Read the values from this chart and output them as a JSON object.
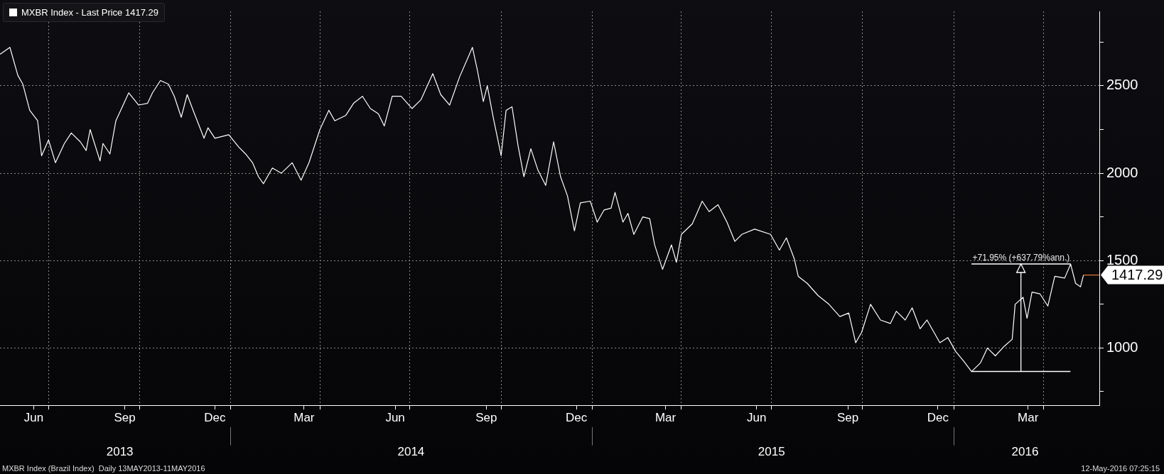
{
  "chart_data": {
    "type": "line",
    "x": [
      "2013-05-13",
      "2013-05-23",
      "2013-05-31",
      "2013-06-05",
      "2013-06-12",
      "2013-06-20",
      "2013-06-24",
      "2013-07-01",
      "2013-07-08",
      "2013-07-17",
      "2013-07-24",
      "2013-08-02",
      "2013-08-08",
      "2013-08-12",
      "2013-08-22",
      "2013-08-25",
      "2013-09-01",
      "2013-09-07",
      "2013-09-20",
      "2013-09-30",
      "2013-10-09",
      "2013-10-14",
      "2013-10-22",
      "2013-10-30",
      "2013-11-05",
      "2013-11-12",
      "2013-11-18",
      "2013-11-24",
      "2013-12-05",
      "2013-12-09",
      "2013-12-16",
      "2013-12-30",
      "2014-01-09",
      "2014-01-16",
      "2014-01-23",
      "2014-01-29",
      "2014-02-03",
      "2014-02-12",
      "2014-02-21",
      "2014-03-04",
      "2014-03-13",
      "2014-03-21",
      "2014-04-01",
      "2014-04-10",
      "2014-04-16",
      "2014-04-27",
      "2014-05-05",
      "2014-05-14",
      "2014-05-22",
      "2014-05-30",
      "2014-06-05",
      "2014-06-13",
      "2014-06-22",
      "2014-07-03",
      "2014-07-12",
      "2014-07-24",
      "2014-08-01",
      "2014-08-10",
      "2014-08-20",
      "2014-09-02",
      "2014-09-07",
      "2014-09-13",
      "2014-09-17",
      "2014-09-23",
      "2014-10-01",
      "2014-10-06",
      "2014-10-12",
      "2014-10-18",
      "2014-10-24",
      "2014-10-31",
      "2014-11-07",
      "2014-11-15",
      "2014-11-23",
      "2014-11-30",
      "2014-12-07",
      "2014-12-14",
      "2014-12-20",
      "2014-12-30",
      "2015-01-06",
      "2015-01-13",
      "2015-01-20",
      "2015-01-24",
      "2015-02-01",
      "2015-02-06",
      "2015-02-12",
      "2015-02-21",
      "2015-02-28",
      "2015-03-05",
      "2015-03-13",
      "2015-03-22",
      "2015-03-27",
      "2015-04-01",
      "2015-04-12",
      "2015-04-22",
      "2015-04-29",
      "2015-05-08",
      "2015-05-17",
      "2015-05-25",
      "2015-06-01",
      "2015-06-14",
      "2015-06-30",
      "2015-07-09",
      "2015-07-16",
      "2015-07-24",
      "2015-07-28",
      "2015-08-06",
      "2015-08-17",
      "2015-08-28",
      "2015-09-08",
      "2015-09-17",
      "2015-09-24",
      "2015-09-30",
      "2015-10-09",
      "2015-10-19",
      "2015-10-29",
      "2015-11-04",
      "2015-11-13",
      "2015-11-20",
      "2015-11-28",
      "2015-12-05",
      "2015-12-18",
      "2015-12-26",
      "2016-01-03",
      "2016-01-11",
      "2016-01-19",
      "2016-01-28",
      "2016-02-04",
      "2016-02-12",
      "2016-02-21",
      "2016-02-29",
      "2016-03-03",
      "2016-03-11",
      "2016-03-15",
      "2016-03-20",
      "2016-03-28",
      "2016-04-05",
      "2016-04-12",
      "2016-04-22",
      "2016-04-28",
      "2016-05-03",
      "2016-05-08",
      "2016-05-11"
    ],
    "series": [
      {
        "name": "MXBR Index - Last Price 1417.29",
        "color": "#ffffff",
        "values": [
          2680,
          2720,
          2560,
          2510,
          2360,
          2300,
          2100,
          2190,
          2060,
          2170,
          2230,
          2180,
          2130,
          2250,
          2070,
          2170,
          2110,
          2300,
          2460,
          2390,
          2400,
          2460,
          2530,
          2510,
          2440,
          2320,
          2450,
          2360,
          2200,
          2260,
          2200,
          2220,
          2150,
          2110,
          2060,
          1980,
          1940,
          2030,
          2000,
          2060,
          1960,
          2060,
          2250,
          2360,
          2300,
          2330,
          2400,
          2440,
          2370,
          2340,
          2270,
          2440,
          2440,
          2370,
          2420,
          2570,
          2450,
          2390,
          2550,
          2720,
          2590,
          2410,
          2500,
          2320,
          2100,
          2360,
          2380,
          2160,
          1980,
          2140,
          2020,
          1930,
          2180,
          1980,
          1870,
          1670,
          1830,
          1840,
          1720,
          1790,
          1800,
          1890,
          1720,
          1770,
          1650,
          1750,
          1740,
          1590,
          1450,
          1590,
          1490,
          1650,
          1710,
          1840,
          1780,
          1820,
          1720,
          1610,
          1650,
          1680,
          1650,
          1560,
          1630,
          1510,
          1410,
          1370,
          1300,
          1250,
          1180,
          1200,
          1030,
          1090,
          1250,
          1160,
          1140,
          1210,
          1160,
          1230,
          1110,
          1160,
          1030,
          1060,
          980,
          925,
          865,
          915,
          1000,
          955,
          1010,
          1050,
          1250,
          1290,
          1170,
          1320,
          1310,
          1240,
          1410,
          1400,
          1480,
          1370,
          1350,
          1417.29
        ]
      }
    ],
    "xlim": [
      "2013-05-13",
      "2016-05-27"
    ],
    "xticks": [
      {
        "value": "2013-06-16",
        "label": "Jun"
      },
      {
        "value": "2013-07-01",
        "label": null
      },
      {
        "value": "2013-09-16",
        "label": "Sep"
      },
      {
        "value": "2013-10-01",
        "label": null
      },
      {
        "value": "2013-12-16",
        "label": "Dec"
      },
      {
        "value": "2014-01-01",
        "label": null
      },
      {
        "value": "2014-03-16",
        "label": "Mar"
      },
      {
        "value": "2014-04-01",
        "label": null
      },
      {
        "value": "2014-06-16",
        "label": "Jun"
      },
      {
        "value": "2014-07-01",
        "label": null
      },
      {
        "value": "2014-09-16",
        "label": "Sep"
      },
      {
        "value": "2014-10-01",
        "label": null
      },
      {
        "value": "2014-12-16",
        "label": "Dec"
      },
      {
        "value": "2015-01-01",
        "label": null
      },
      {
        "value": "2015-03-16",
        "label": "Mar"
      },
      {
        "value": "2015-04-01",
        "label": null
      },
      {
        "value": "2015-06-16",
        "label": "Jun"
      },
      {
        "value": "2015-07-01",
        "label": null
      },
      {
        "value": "2015-09-16",
        "label": "Sep"
      },
      {
        "value": "2015-10-01",
        "label": null
      },
      {
        "value": "2015-12-16",
        "label": "Dec"
      },
      {
        "value": "2016-01-01",
        "label": null
      },
      {
        "value": "2016-03-16",
        "label": "Mar"
      },
      {
        "value": "2016-04-01",
        "label": null
      }
    ],
    "x2lim": [
      "2013-05-13",
      "2016-05-27"
    ],
    "x2ticks": [
      {
        "value": "2013-09-11",
        "label": "2013"
      },
      {
        "value": "2014-01-01",
        "label": null
      },
      {
        "value": "2014-07-02",
        "label": "2014"
      },
      {
        "value": "2015-01-01",
        "label": null
      },
      {
        "value": "2015-07-01",
        "label": "2015"
      },
      {
        "value": "2016-01-01",
        "label": null
      },
      {
        "value": "2016-03-13",
        "label": "2016"
      }
    ],
    "ylim": [
      672,
      2926
    ],
    "yticks": [
      {
        "value": 750,
        "label": null
      },
      1000,
      {
        "value": 1250,
        "label": null
      },
      1500,
      {
        "value": 1750,
        "label": null
      },
      2000,
      {
        "value": 2250,
        "label": null
      },
      2500,
      {
        "value": 2750,
        "label": null
      }
    ],
    "grid": true,
    "legend": "top left",
    "ref_lines": [
      {
        "axis": "y",
        "value": 1417.29,
        "label": "1417.29",
        "color": "#e07b39"
      }
    ],
    "annotations": [
      "+71.95% (+637.79%ann.)",
      "MXBR Index (Brazil Index)  Daily 13MAY2013-11MAY2016",
      "12-May-2016 07:25:15"
    ]
  }
}
